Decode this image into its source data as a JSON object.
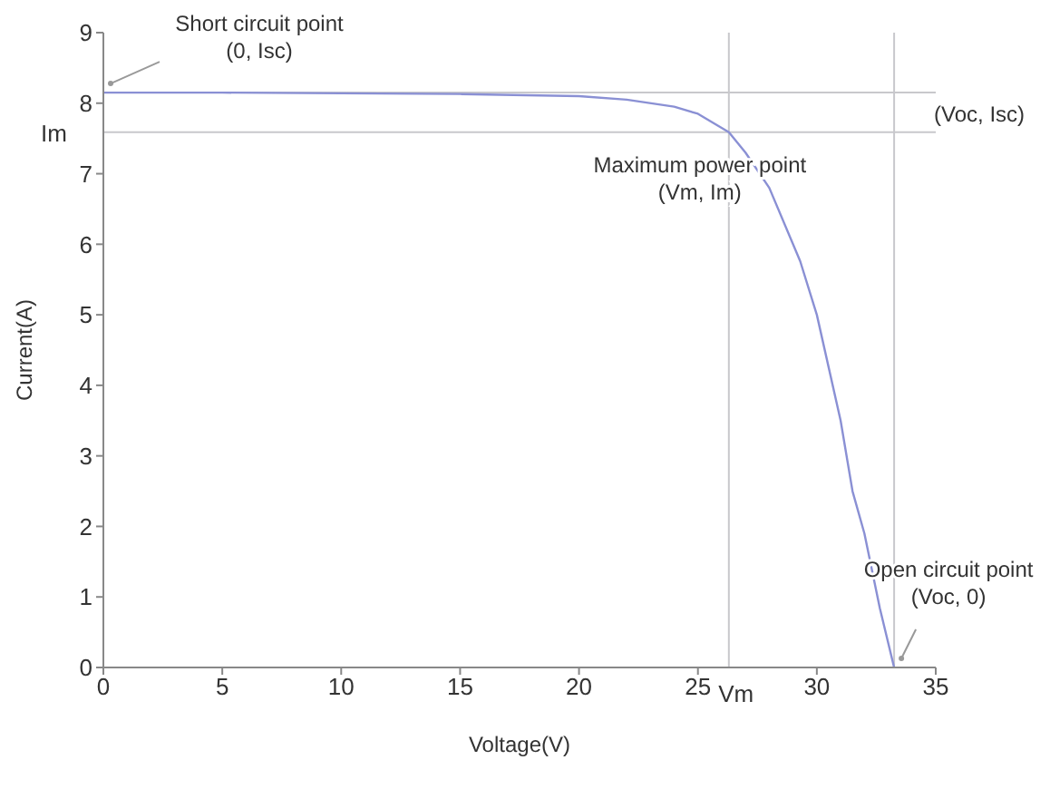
{
  "chart_data": {
    "type": "line",
    "xlabel": "Voltage(V)",
    "ylabel": "Current(A)",
    "xlim": [
      0,
      35
    ],
    "xticks": [
      0,
      5,
      10,
      15,
      20,
      25,
      30,
      35
    ],
    "ylim": [
      0,
      9
    ],
    "yticks": [
      0,
      1,
      2,
      3,
      4,
      5,
      6,
      7,
      8,
      9
    ],
    "grid": false,
    "marker": "none",
    "line_style": "solid",
    "series": [
      {
        "color": "#8a90d4",
        "x": [
          0,
          5,
          10,
          15,
          20,
          22,
          24,
          25,
          26.3,
          27,
          28,
          29.3,
          30,
          31,
          31.5,
          32,
          32.65,
          33.25
        ],
        "values": [
          8.15,
          8.15,
          8.14,
          8.13,
          8.1,
          8.05,
          7.95,
          7.85,
          7.59,
          7.3,
          6.8,
          5.76,
          5.0,
          3.5,
          2.5,
          1.9,
          0.84,
          0
        ]
      }
    ],
    "ref_lines": [
      {
        "axis": "y",
        "value": 8.15,
        "label": null,
        "color": "#c8c8cc"
      },
      {
        "axis": "y",
        "value": 7.59,
        "label": "Im",
        "color": "#c8c8cc"
      },
      {
        "axis": "x",
        "value": 26.3,
        "label": "Vm",
        "color": "#c8c8cc"
      },
      {
        "axis": "x",
        "value": 33.25,
        "label": null,
        "color": "#c8c8cc"
      }
    ],
    "annotations": [
      {
        "text": "Short circuit point\n(0, Isc)",
        "x": 0,
        "y": 8.15
      },
      {
        "text": "Maximum power point\n(Vm, Im)",
        "x": 26.3,
        "y": 7.59
      },
      {
        "text": "(Voc, Isc)",
        "x": 33.25,
        "y": 8.15
      },
      {
        "text": "Open circuit point\n(Voc, 0)",
        "x": 33.25,
        "y": 0
      }
    ]
  }
}
